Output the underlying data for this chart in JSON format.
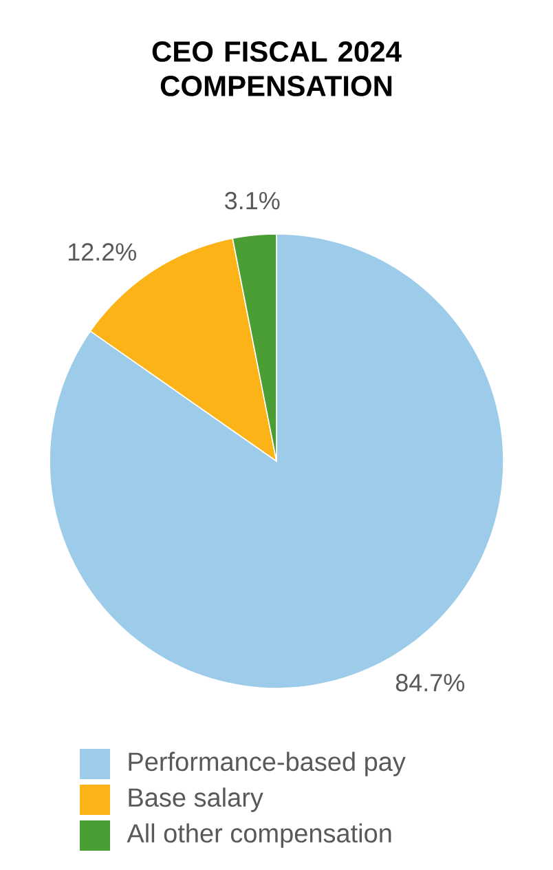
{
  "chart_data": {
    "type": "pie",
    "title": "CEO FISCAL 2024 COMPENSATION",
    "categories": [
      "Performance-based pay",
      "Base salary",
      "All other compensation"
    ],
    "values": [
      84.7,
      12.2,
      3.1
    ],
    "colors": [
      "#9dcbea",
      "#fbb317",
      "#4a9e33"
    ],
    "value_labels": [
      "84.7%",
      "12.2%",
      "3.1%"
    ],
    "legend": "bottom"
  }
}
